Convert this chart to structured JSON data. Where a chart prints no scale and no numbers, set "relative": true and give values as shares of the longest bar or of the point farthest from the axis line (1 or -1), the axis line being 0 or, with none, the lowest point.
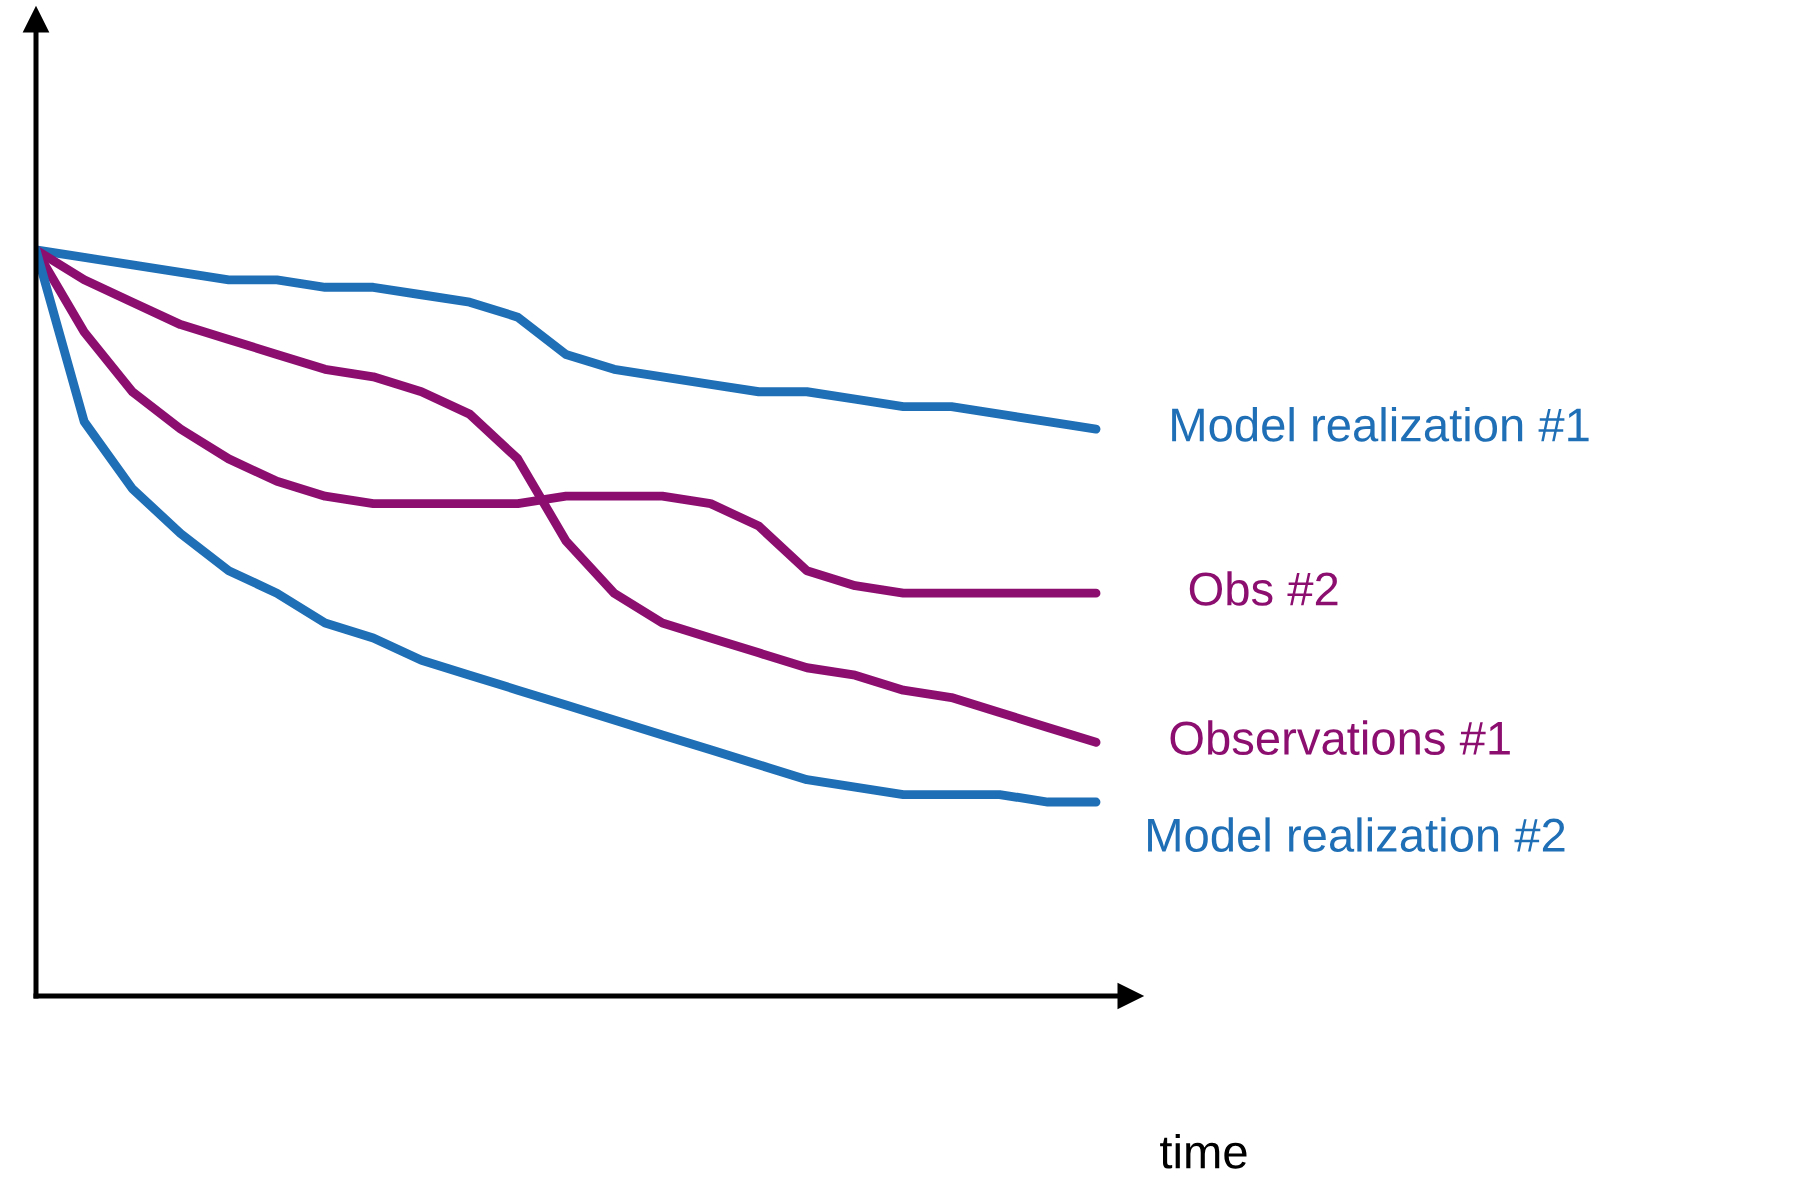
{
  "chart_data": {
    "type": "line",
    "relative": true,
    "xlabel": "time",
    "legend": false,
    "marker": "none",
    "line_style": "solid",
    "categories": [
      null,
      null,
      null,
      null,
      null,
      null,
      null,
      null,
      null,
      null,
      null,
      null,
      null,
      null,
      null,
      null,
      null,
      null,
      null,
      null,
      null,
      null,
      null
    ],
    "series": [
      {
        "name": "Model realization #1",
        "color": "#1f6fb6",
        "values": [
          1.0,
          0.99,
          0.98,
          0.97,
          0.96,
          0.96,
          0.95,
          0.95,
          0.94,
          0.93,
          0.91,
          0.86,
          0.84,
          0.83,
          0.82,
          0.81,
          0.81,
          0.8,
          0.79,
          0.79,
          0.78,
          0.77,
          0.76
        ]
      },
      {
        "name": "Obs #2",
        "color": "#8c0f70",
        "values": [
          1.0,
          0.89,
          0.81,
          0.76,
          0.72,
          0.69,
          0.67,
          0.66,
          0.66,
          0.66,
          0.66,
          0.67,
          0.67,
          0.67,
          0.66,
          0.63,
          0.57,
          0.55,
          0.54,
          0.54,
          0.54,
          0.54,
          0.54
        ]
      },
      {
        "name": "Observations #1",
        "color": "#8c0f70",
        "values": [
          1.0,
          0.96,
          0.93,
          0.9,
          0.88,
          0.86,
          0.84,
          0.83,
          0.81,
          0.78,
          0.72,
          0.61,
          0.54,
          0.5,
          0.48,
          0.46,
          0.44,
          0.43,
          0.41,
          0.4,
          0.38,
          0.36,
          0.34
        ]
      },
      {
        "name": "Model realization #2",
        "color": "#1f6fb6",
        "values": [
          1.0,
          0.77,
          0.68,
          0.62,
          0.57,
          0.54,
          0.5,
          0.48,
          0.45,
          0.43,
          0.41,
          0.39,
          0.37,
          0.35,
          0.33,
          0.31,
          0.29,
          0.28,
          0.27,
          0.27,
          0.27,
          0.26,
          0.26
        ]
      }
    ]
  }
}
